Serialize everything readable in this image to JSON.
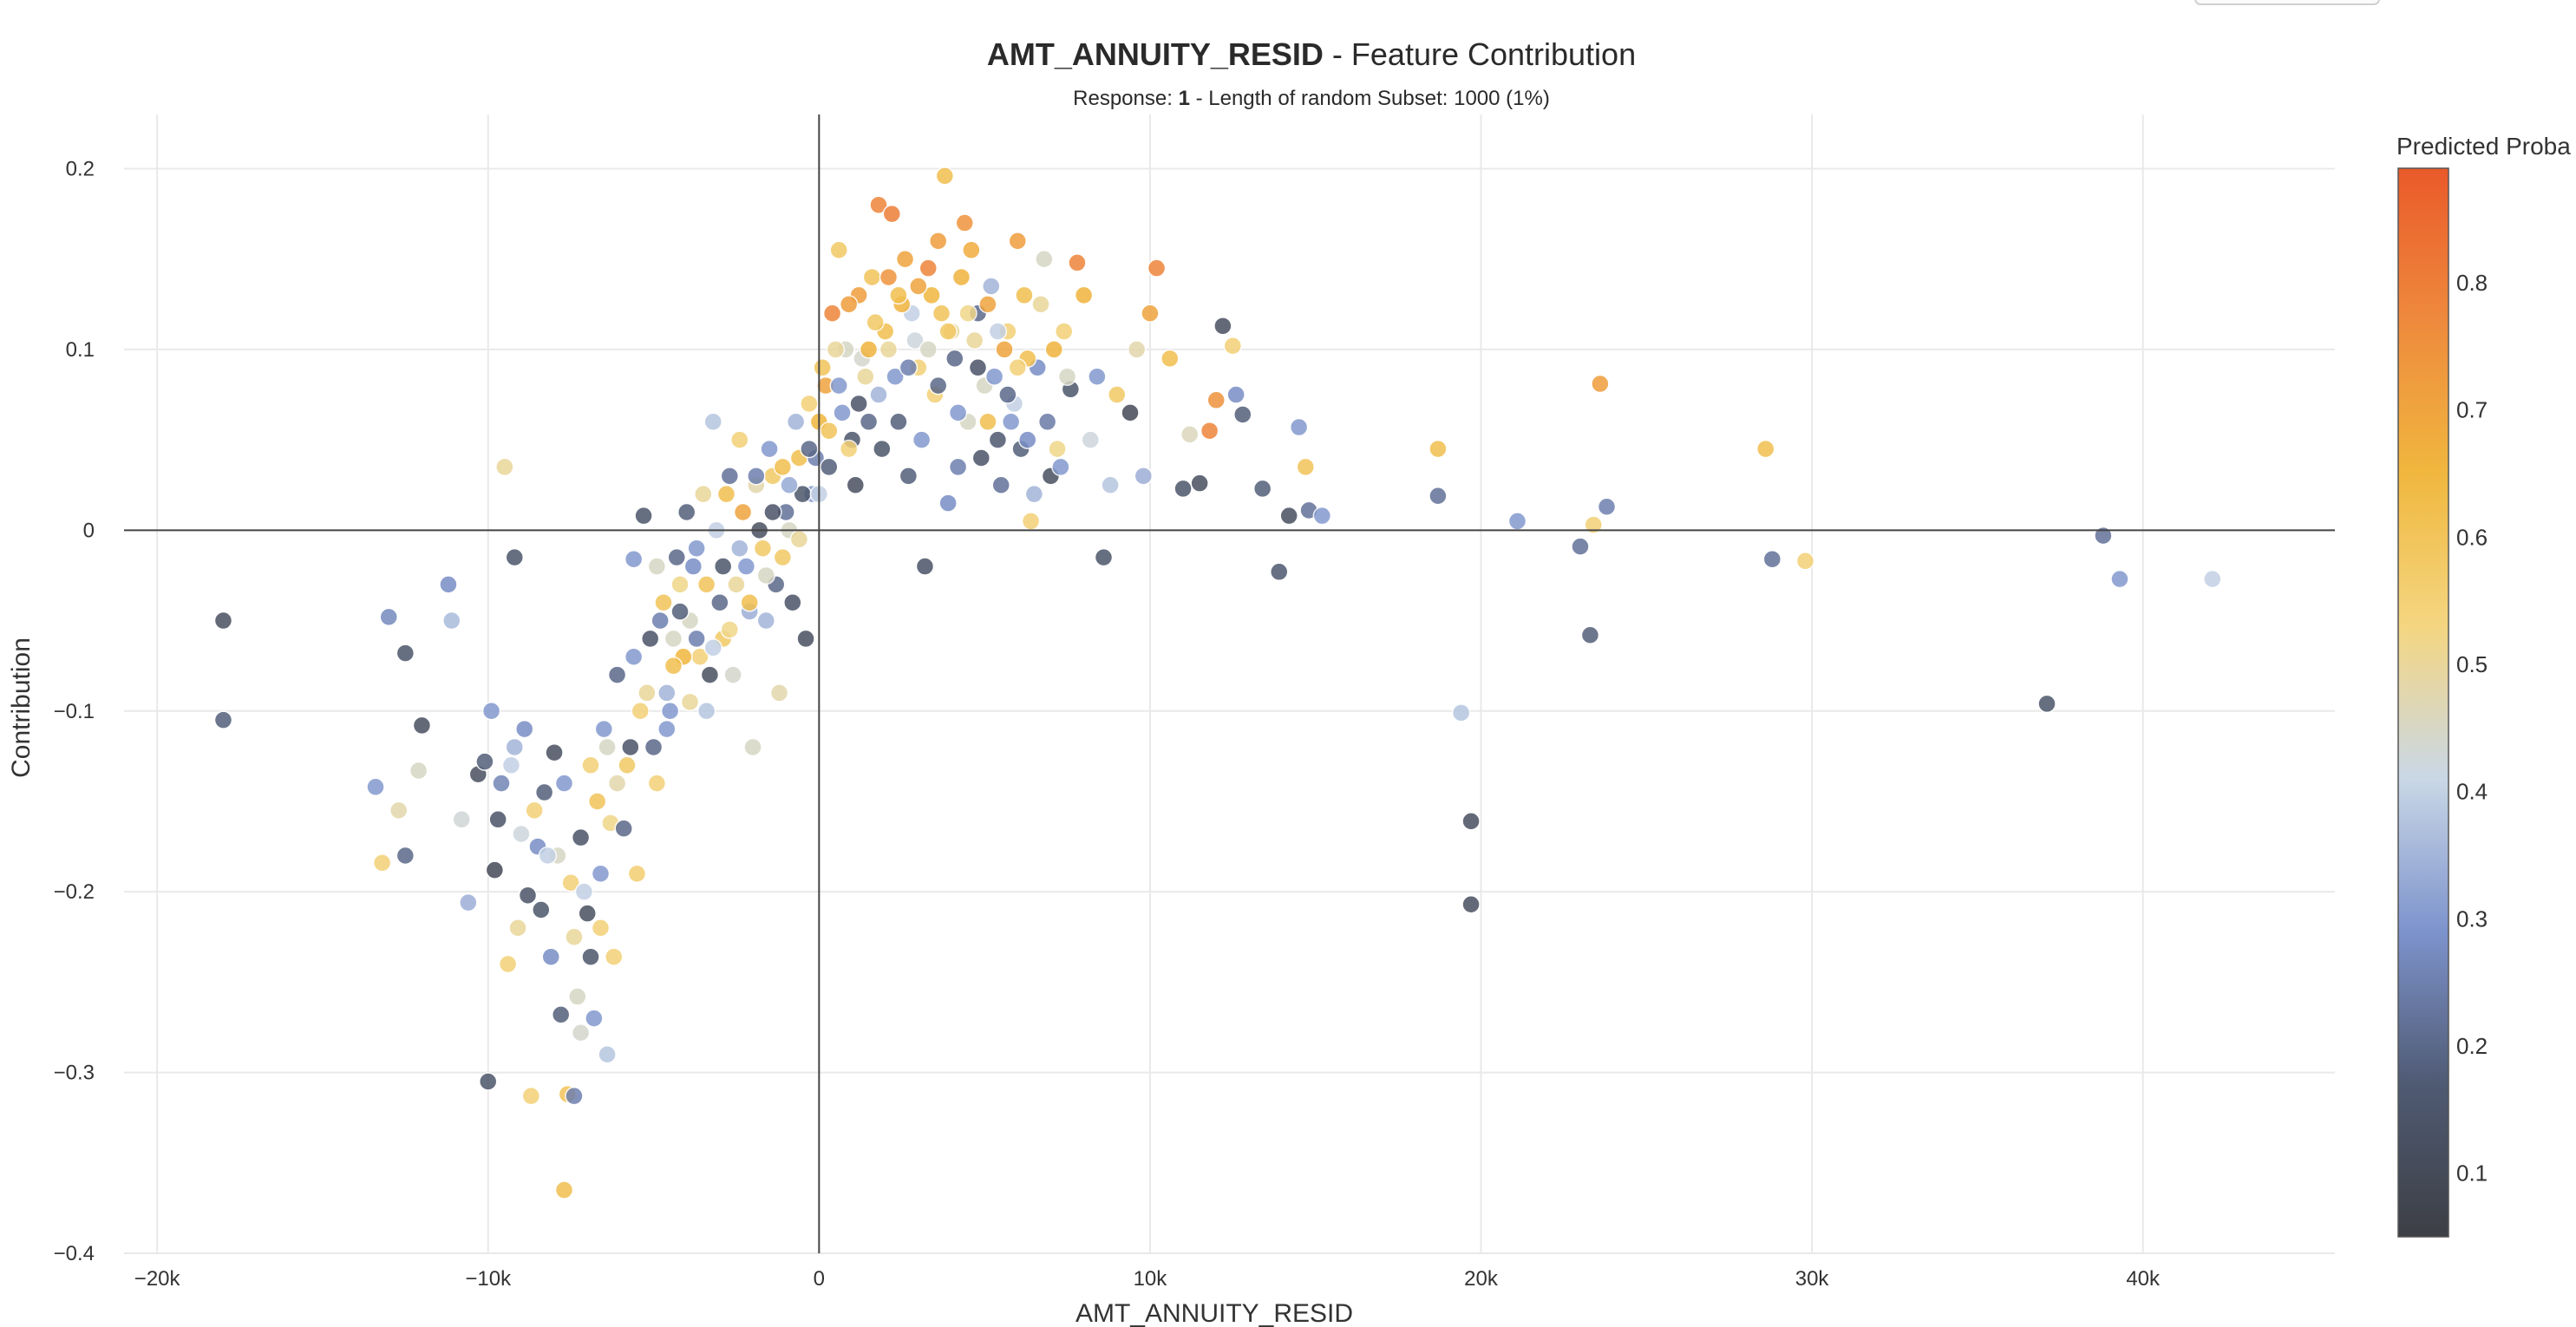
{
  "title": {
    "bold": "AMT_ANNUITY_RESID",
    "rest": " - Feature Contribution"
  },
  "subtitle": {
    "prefix": "Response: ",
    "bold": "1",
    "rest": " - Length of random Subset: 1000 (1%)"
  },
  "colorbar": {
    "title": "Predicted Proba",
    "ticks": [
      "0.1",
      "0.2",
      "0.3",
      "0.4",
      "0.5",
      "0.6",
      "0.7",
      "0.8"
    ],
    "colors": [
      "#3d3f45",
      "#4f5a73",
      "#7d93cc",
      "#c9d7e6",
      "#f4d681",
      "#f0b73e",
      "#ee8a3d",
      "#ea5a2a"
    ]
  },
  "chart_data": {
    "type": "scatter",
    "title": "AMT_ANNUITY_RESID - Feature Contribution",
    "subtitle": "Response: 1 - Length of random Subset: 1000 (1%)",
    "xlabel": "AMT_ANNUITY_RESID",
    "ylabel": "Contribution",
    "xlim": [
      -21000,
      45800
    ],
    "ylim": [
      -0.4,
      0.23
    ],
    "x_ticks": [
      -20000,
      -10000,
      0,
      10000,
      20000,
      30000,
      40000
    ],
    "x_tick_labels": [
      "−20k",
      "−10k",
      "0",
      "10k",
      "20k",
      "30k",
      "40k"
    ],
    "y_ticks": [
      -0.4,
      -0.3,
      -0.2,
      -0.1,
      0,
      0.1,
      0.2
    ],
    "y_tick_labels": [
      "−0.4",
      "−0.3",
      "−0.2",
      "−0.1",
      "0",
      "0.1",
      "0.2"
    ],
    "color_variable": "Predicted Proba",
    "color_range": [
      0.05,
      0.89
    ],
    "grid": true,
    "points": [
      [
        -18000,
        -0.05,
        0.12
      ],
      [
        -18000,
        -0.105,
        0.18
      ],
      [
        -13000,
        -0.048,
        0.27
      ],
      [
        -12500,
        -0.068,
        0.15
      ],
      [
        -12000,
        -0.108,
        0.12
      ],
      [
        -11200,
        -0.03,
        0.28
      ],
      [
        -11100,
        -0.05,
        0.36
      ],
      [
        -9500,
        0.035,
        0.5
      ],
      [
        -9200,
        -0.015,
        0.15
      ],
      [
        -13400,
        -0.142,
        0.3
      ],
      [
        -13200,
        -0.184,
        0.55
      ],
      [
        -12700,
        -0.155,
        0.48
      ],
      [
        -12500,
        -0.18,
        0.2
      ],
      [
        -12100,
        -0.133,
        0.45
      ],
      [
        -10800,
        -0.16,
        0.43
      ],
      [
        -10600,
        -0.206,
        0.34
      ],
      [
        -10300,
        -0.135,
        0.12
      ],
      [
        -10100,
        -0.128,
        0.18
      ],
      [
        -10000,
        -0.305,
        0.15
      ],
      [
        -9800,
        -0.188,
        0.1
      ],
      [
        -9600,
        -0.14,
        0.26
      ],
      [
        -9400,
        -0.24,
        0.55
      ],
      [
        -9200,
        -0.12,
        0.35
      ],
      [
        -9000,
        -0.168,
        0.42
      ],
      [
        -8800,
        -0.202,
        0.14
      ],
      [
        -8700,
        -0.313,
        0.55
      ],
      [
        -8500,
        -0.175,
        0.28
      ],
      [
        -8300,
        -0.145,
        0.18
      ],
      [
        -8100,
        -0.236,
        0.28
      ],
      [
        -8000,
        -0.123,
        0.12
      ],
      [
        -7800,
        -0.268,
        0.18
      ],
      [
        -7700,
        -0.365,
        0.62
      ],
      [
        -7600,
        -0.312,
        0.6
      ],
      [
        -7400,
        -0.313,
        0.25
      ],
      [
        -7300,
        -0.258,
        0.45
      ],
      [
        -7200,
        -0.278,
        0.44
      ],
      [
        -7000,
        -0.212,
        0.12
      ],
      [
        -6900,
        -0.236,
        0.15
      ],
      [
        -6800,
        -0.27,
        0.3
      ],
      [
        -6600,
        -0.22,
        0.55
      ],
      [
        -6400,
        -0.29,
        0.38
      ],
      [
        -6300,
        -0.162,
        0.52
      ],
      [
        -6200,
        -0.236,
        0.55
      ],
      [
        -6100,
        -0.14,
        0.48
      ],
      [
        -5900,
        -0.165,
        0.2
      ],
      [
        -5700,
        -0.12,
        0.14
      ],
      [
        -5500,
        -0.19,
        0.56
      ],
      [
        -5300,
        0.008,
        0.15
      ],
      [
        -5600,
        -0.016,
        0.3
      ],
      [
        -4800,
        -0.05,
        0.25
      ],
      [
        -4600,
        -0.09,
        0.35
      ],
      [
        -4400,
        -0.06,
        0.45
      ],
      [
        -4200,
        -0.03,
        0.52
      ],
      [
        -4000,
        0.01,
        0.18
      ],
      [
        -3800,
        -0.02,
        0.28
      ],
      [
        -3600,
        -0.07,
        0.55
      ],
      [
        -3400,
        -0.1,
        0.38
      ],
      [
        -3200,
        0.06,
        0.38
      ],
      [
        -3000,
        -0.04,
        0.2
      ],
      [
        -2800,
        0.02,
        0.62
      ],
      [
        -2600,
        -0.08,
        0.44
      ],
      [
        -2400,
        0.05,
        0.55
      ],
      [
        -2200,
        -0.02,
        0.3
      ],
      [
        -2000,
        -0.12,
        0.45
      ],
      [
        -1800,
        0.0,
        0.12
      ],
      [
        -1600,
        -0.05,
        0.35
      ],
      [
        -1400,
        0.03,
        0.58
      ],
      [
        -1200,
        -0.09,
        0.48
      ],
      [
        -1000,
        0.01,
        0.22
      ],
      [
        -800,
        -0.04,
        0.14
      ],
      [
        -600,
        0.04,
        0.62
      ],
      [
        -400,
        -0.06,
        0.12
      ],
      [
        -200,
        0.02,
        0.3
      ],
      [
        0,
        0.06,
        0.65
      ],
      [
        200,
        0.08,
        0.7
      ],
      [
        400,
        0.12,
        0.78
      ],
      [
        600,
        0.155,
        0.58
      ],
      [
        800,
        0.1,
        0.45
      ],
      [
        1000,
        0.05,
        0.15
      ],
      [
        1200,
        0.13,
        0.72
      ],
      [
        1400,
        0.085,
        0.5
      ],
      [
        1600,
        0.14,
        0.6
      ],
      [
        1800,
        0.18,
        0.78
      ],
      [
        2000,
        0.11,
        0.62
      ],
      [
        2200,
        0.175,
        0.8
      ],
      [
        2400,
        0.06,
        0.18
      ],
      [
        2600,
        0.15,
        0.7
      ],
      [
        2800,
        0.12,
        0.4
      ],
      [
        3000,
        0.09,
        0.55
      ],
      [
        3200,
        -0.02,
        0.14
      ],
      [
        3400,
        0.13,
        0.65
      ],
      [
        3600,
        0.16,
        0.72
      ],
      [
        3800,
        0.196,
        0.62
      ],
      [
        4000,
        0.11,
        0.5
      ],
      [
        4200,
        0.035,
        0.25
      ],
      [
        4400,
        0.17,
        0.74
      ],
      [
        4600,
        0.155,
        0.68
      ],
      [
        4800,
        0.12,
        0.2
      ],
      [
        5000,
        0.08,
        0.45
      ],
      [
        5200,
        0.135,
        0.35
      ],
      [
        5400,
        0.05,
        0.16
      ],
      [
        5600,
        0.1,
        0.7
      ],
      [
        5800,
        0.06,
        0.3
      ],
      [
        6000,
        0.16,
        0.72
      ],
      [
        6200,
        0.13,
        0.62
      ],
      [
        6400,
        0.005,
        0.55
      ],
      [
        6600,
        0.09,
        0.28
      ],
      [
        6800,
        0.15,
        0.45
      ],
      [
        7000,
        0.03,
        0.12
      ],
      [
        7200,
        0.045,
        0.52
      ],
      [
        7400,
        0.11,
        0.55
      ],
      [
        7600,
        0.078,
        0.15
      ],
      [
        7800,
        0.148,
        0.78
      ],
      [
        8000,
        0.13,
        0.66
      ],
      [
        8200,
        0.05,
        0.42
      ],
      [
        8400,
        0.085,
        0.3
      ],
      [
        8600,
        -0.015,
        0.15
      ],
      [
        8800,
        0.025,
        0.38
      ],
      [
        9000,
        0.075,
        0.58
      ],
      [
        9400,
        0.065,
        0.1
      ],
      [
        9600,
        0.1,
        0.48
      ],
      [
        9800,
        0.03,
        0.34
      ],
      [
        10000,
        0.12,
        0.7
      ],
      [
        10200,
        0.145,
        0.78
      ],
      [
        10600,
        0.095,
        0.62
      ],
      [
        11000,
        0.023,
        0.15
      ],
      [
        11200,
        0.053,
        0.46
      ],
      [
        11500,
        0.026,
        0.12
      ],
      [
        11800,
        0.055,
        0.78
      ],
      [
        12000,
        0.072,
        0.75
      ],
      [
        12200,
        0.113,
        0.12
      ],
      [
        12500,
        0.102,
        0.55
      ],
      [
        12600,
        0.075,
        0.28
      ],
      [
        12800,
        0.064,
        0.18
      ],
      [
        13400,
        0.023,
        0.18
      ],
      [
        13900,
        -0.023,
        0.16
      ],
      [
        14200,
        0.008,
        0.12
      ],
      [
        14500,
        0.057,
        0.3
      ],
      [
        14700,
        0.035,
        0.6
      ],
      [
        14800,
        0.011,
        0.22
      ],
      [
        15200,
        0.008,
        0.3
      ],
      [
        18700,
        0.045,
        0.62
      ],
      [
        18700,
        0.019,
        0.22
      ],
      [
        19400,
        -0.101,
        0.38
      ],
      [
        19700,
        -0.161,
        0.12
      ],
      [
        19700,
        -0.207,
        0.12
      ],
      [
        21100,
        0.005,
        0.3
      ],
      [
        23000,
        -0.009,
        0.22
      ],
      [
        23300,
        -0.058,
        0.18
      ],
      [
        23400,
        0.003,
        0.55
      ],
      [
        23600,
        0.081,
        0.72
      ],
      [
        23800,
        0.013,
        0.25
      ],
      [
        28600,
        0.045,
        0.62
      ],
      [
        28800,
        -0.016,
        0.22
      ],
      [
        29800,
        -0.017,
        0.55
      ],
      [
        37100,
        -0.096,
        0.15
      ],
      [
        38800,
        -0.003,
        0.22
      ],
      [
        39300,
        -0.027,
        0.3
      ],
      [
        42100,
        -0.027,
        0.4
      ],
      [
        -7900,
        -0.18,
        0.45
      ],
      [
        -7500,
        -0.195,
        0.55
      ],
      [
        -7100,
        -0.2,
        0.4
      ],
      [
        -6700,
        -0.15,
        0.6
      ],
      [
        -6500,
        -0.11,
        0.3
      ],
      [
        -5200,
        -0.09,
        0.5
      ],
      [
        -5000,
        -0.12,
        0.2
      ],
      [
        -4900,
        -0.14,
        0.55
      ],
      [
        -4700,
        -0.04,
        0.6
      ],
      [
        -4500,
        -0.1,
        0.3
      ],
      [
        -4300,
        -0.015,
        0.2
      ],
      [
        -4100,
        -0.07,
        0.65
      ],
      [
        -3900,
        -0.05,
        0.45
      ],
      [
        -3700,
        -0.01,
        0.3
      ],
      [
        -3500,
        0.02,
        0.5
      ],
      [
        -3300,
        -0.08,
        0.12
      ],
      [
        -3100,
        0.0,
        0.4
      ],
      [
        -2900,
        -0.06,
        0.58
      ],
      [
        -2700,
        0.03,
        0.22
      ],
      [
        -2500,
        -0.03,
        0.5
      ],
      [
        -2300,
        0.01,
        0.7
      ],
      [
        -2100,
        -0.045,
        0.34
      ],
      [
        -1900,
        0.025,
        0.48
      ],
      [
        -1700,
        -0.01,
        0.58
      ],
      [
        -1500,
        0.045,
        0.3
      ],
      [
        -1300,
        -0.03,
        0.2
      ],
      [
        -1100,
        0.035,
        0.62
      ],
      [
        -900,
        0.0,
        0.45
      ],
      [
        -700,
        0.06,
        0.35
      ],
      [
        -500,
        0.02,
        0.15
      ],
      [
        -300,
        0.07,
        0.55
      ],
      [
        -100,
        0.04,
        0.25
      ],
      [
        100,
        0.09,
        0.6
      ],
      [
        300,
        0.035,
        0.18
      ],
      [
        500,
        0.1,
        0.5
      ],
      [
        700,
        0.065,
        0.3
      ],
      [
        900,
        0.125,
        0.72
      ],
      [
        1100,
        0.025,
        0.12
      ],
      [
        1300,
        0.095,
        0.44
      ],
      [
        1500,
        0.06,
        0.2
      ],
      [
        1700,
        0.115,
        0.58
      ],
      [
        1900,
        0.045,
        0.15
      ],
      [
        2100,
        0.14,
        0.74
      ],
      [
        2300,
        0.085,
        0.3
      ],
      [
        2500,
        0.125,
        0.66
      ],
      [
        2700,
        0.03,
        0.18
      ],
      [
        2900,
        0.105,
        0.42
      ],
      [
        3100,
        0.05,
        0.3
      ],
      [
        3300,
        0.145,
        0.78
      ],
      [
        3500,
        0.075,
        0.55
      ],
      [
        3700,
        0.12,
        0.6
      ],
      [
        3900,
        0.015,
        0.28
      ],
      [
        4100,
        0.095,
        0.2
      ],
      [
        4300,
        0.14,
        0.66
      ],
      [
        4500,
        0.06,
        0.45
      ],
      [
        4700,
        0.105,
        0.5
      ],
      [
        4900,
        0.04,
        0.14
      ],
      [
        5100,
        0.125,
        0.7
      ],
      [
        5300,
        0.085,
        0.3
      ],
      [
        5500,
        0.025,
        0.22
      ],
      [
        5700,
        0.11,
        0.55
      ],
      [
        5900,
        0.07,
        0.4
      ],
      [
        6100,
        0.045,
        0.18
      ],
      [
        6300,
        0.095,
        0.62
      ],
      [
        6500,
        0.02,
        0.35
      ],
      [
        6700,
        0.125,
        0.5
      ],
      [
        6900,
        0.06,
        0.24
      ],
      [
        7100,
        0.1,
        0.66
      ],
      [
        7300,
        0.035,
        0.3
      ],
      [
        7500,
        0.085,
        0.45
      ],
      [
        -9900,
        -0.1,
        0.3
      ],
      [
        -9700,
        -0.16,
        0.14
      ],
      [
        -9300,
        -0.13,
        0.4
      ],
      [
        -9100,
        -0.22,
        0.5
      ],
      [
        -8900,
        -0.11,
        0.28
      ],
      [
        -8600,
        -0.155,
        0.55
      ],
      [
        -8400,
        -0.21,
        0.15
      ],
      [
        -8200,
        -0.18,
        0.4
      ],
      [
        -7700,
        -0.14,
        0.3
      ],
      [
        -7400,
        -0.225,
        0.5
      ],
      [
        -7200,
        -0.17,
        0.14
      ],
      [
        -6900,
        -0.13,
        0.55
      ],
      [
        -6600,
        -0.19,
        0.3
      ],
      [
        -6400,
        -0.12,
        0.45
      ],
      [
        -6100,
        -0.08,
        0.2
      ],
      [
        -5800,
        -0.13,
        0.58
      ],
      [
        -5600,
        -0.07,
        0.3
      ],
      [
        -5400,
        -0.1,
        0.55
      ],
      [
        -5100,
        -0.06,
        0.14
      ],
      [
        -4900,
        -0.02,
        0.45
      ],
      [
        -4600,
        -0.11,
        0.3
      ],
      [
        -4400,
        -0.075,
        0.62
      ],
      [
        -4200,
        -0.045,
        0.18
      ],
      [
        -3900,
        -0.095,
        0.5
      ],
      [
        -3700,
        -0.06,
        0.25
      ],
      [
        -3400,
        -0.03,
        0.6
      ],
      [
        -3200,
        -0.065,
        0.4
      ],
      [
        -2900,
        -0.02,
        0.15
      ],
      [
        -2700,
        -0.055,
        0.52
      ],
      [
        -2400,
        -0.01,
        0.35
      ],
      [
        -2100,
        -0.04,
        0.62
      ],
      [
        -1900,
        0.03,
        0.25
      ],
      [
        -1600,
        -0.025,
        0.45
      ],
      [
        -1400,
        0.01,
        0.14
      ],
      [
        -1100,
        -0.015,
        0.58
      ],
      [
        -900,
        0.025,
        0.33
      ],
      [
        -600,
        -0.005,
        0.5
      ],
      [
        -300,
        0.045,
        0.2
      ],
      [
        0,
        0.02,
        0.4
      ],
      [
        300,
        0.055,
        0.6
      ],
      [
        600,
        0.08,
        0.3
      ],
      [
        900,
        0.045,
        0.55
      ],
      [
        1200,
        0.07,
        0.14
      ],
      [
        1500,
        0.1,
        0.66
      ],
      [
        1800,
        0.075,
        0.35
      ],
      [
        2100,
        0.1,
        0.5
      ],
      [
        2400,
        0.13,
        0.62
      ],
      [
        2700,
        0.09,
        0.25
      ],
      [
        3000,
        0.135,
        0.7
      ],
      [
        3300,
        0.1,
        0.45
      ],
      [
        3600,
        0.08,
        0.2
      ],
      [
        3900,
        0.11,
        0.58
      ],
      [
        4200,
        0.065,
        0.3
      ],
      [
        4500,
        0.12,
        0.52
      ],
      [
        4800,
        0.09,
        0.14
      ],
      [
        5100,
        0.06,
        0.62
      ],
      [
        5400,
        0.11,
        0.4
      ],
      [
        5700,
        0.075,
        0.2
      ],
      [
        6000,
        0.09,
        0.55
      ],
      [
        6300,
        0.05,
        0.28
      ]
    ]
  }
}
